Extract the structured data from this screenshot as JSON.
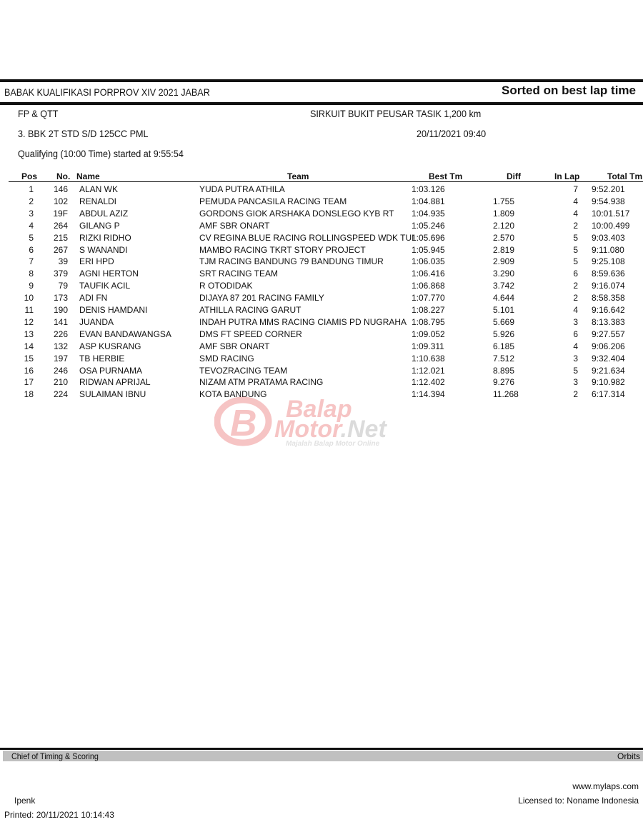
{
  "header": {
    "event_title": "BABAK KUALIFIKASI PORPROV XIV 2021 JABAR",
    "sort_label": "Sorted on best lap time",
    "session_type": "FP & QTT",
    "circuit": "SIRKUIT BUKIT PEUSAR TASIK 1,200 km",
    "class_name": "3. BBK 2T STD S/D 125CC PML",
    "datetime": "20/11/2021 09:40",
    "session_info": "Qualifying (10:00 Time) started at 9:55:54"
  },
  "table": {
    "columns": [
      "Pos",
      "No.",
      "Name",
      "Team",
      "Best Tm",
      "Diff",
      "In Lap",
      "Total Tm"
    ],
    "rows": [
      [
        "1",
        "146",
        "ALAN WK",
        "YUDA PUTRA ATHILA",
        "1:03.126",
        "",
        "7",
        "9:52.201"
      ],
      [
        "2",
        "102",
        "RENALDI",
        "PEMUDA PANCASILA RACING TEAM",
        "1:04.881",
        "1.755",
        "4",
        "9:54.938"
      ],
      [
        "3",
        "19F",
        "ABDUL AZIZ",
        "GORDONS GIOK ARSHAKA DONSLEGO KYB RT",
        "1:04.935",
        "1.809",
        "4",
        "10:01.517"
      ],
      [
        "4",
        "264",
        "GILANG P",
        "AMF SBR ONART",
        "1:05.246",
        "2.120",
        "2",
        "10:00.499"
      ],
      [
        "5",
        "215",
        "RIZKI RIDHO",
        "CV REGINA BLUE RACING ROLLINGSPEED WDK TUI",
        "1:05.696",
        "2.570",
        "5",
        "9:03.403"
      ],
      [
        "6",
        "267",
        "S WANANDI",
        "MAMBO RACING TKRT STORY PROJECT",
        "1:05.945",
        "2.819",
        "5",
        "9:11.080"
      ],
      [
        "7",
        "39",
        "ERI HPD",
        "TJM RACING BANDUNG 79 BANDUNG TIMUR",
        "1:06.035",
        "2.909",
        "5",
        "9:25.108"
      ],
      [
        "8",
        "379",
        "AGNI HERTON",
        "SRT RACING TEAM",
        "1:06.416",
        "3.290",
        "6",
        "8:59.636"
      ],
      [
        "9",
        "79",
        "TAUFIK ACIL",
        "R OTODIDAK",
        "1:06.868",
        "3.742",
        "2",
        "9:16.074"
      ],
      [
        "10",
        "173",
        "ADI FN",
        "DIJAYA 87 201 RACING FAMILY",
        "1:07.770",
        "4.644",
        "2",
        "8:58.358"
      ],
      [
        "11",
        "190",
        "DENIS HAMDANI",
        "ATHILLA RACING GARUT",
        "1:08.227",
        "5.101",
        "4",
        "9:16.642"
      ],
      [
        "12",
        "141",
        "JUANDA",
        "INDAH PUTRA MMS RACING CIAMIS PD NUGRAHA",
        "1:08.795",
        "5.669",
        "3",
        "8:13.383"
      ],
      [
        "13",
        "226",
        "EVAN BANDAWANGSA",
        "DMS FT SPEED CORNER",
        "1:09.052",
        "5.926",
        "6",
        "9:27.557"
      ],
      [
        "14",
        "132",
        "ASP KUSRANG",
        "AMF SBR ONART",
        "1:09.311",
        "6.185",
        "4",
        "9:06.206"
      ],
      [
        "15",
        "197",
        "TB HERBIE",
        "SMD RACING",
        "1:10.638",
        "7.512",
        "3",
        "9:32.404"
      ],
      [
        "16",
        "246",
        "OSA PURNAMA",
        "TEVOZRACING TEAM",
        "1:12.021",
        "8.895",
        "5",
        "9:21.634"
      ],
      [
        "17",
        "210",
        "RIDWAN APRIJAL",
        "NIZAM ATM PRATAMA RACING",
        "1:12.402",
        "9.276",
        "3",
        "9:10.982"
      ],
      [
        "18",
        "224",
        "SULAIMAN IBNU",
        "KOTA BANDUNG",
        "1:14.394",
        "11.268",
        "2",
        "6:17.314"
      ]
    ]
  },
  "watermark": {
    "line1": "Balap",
    "line2": "Motor.Net",
    "tagline": "Majalah Balap Motor Online",
    "color": "#e8585a"
  },
  "footer": {
    "left_bar": "Chief of Timing & Scoring",
    "right_bar": "Orbits",
    "website": "www.mylaps.com",
    "operator": "Ipenk",
    "licensed": "Licensed to:  Noname Indonesia",
    "printed": "Printed: 20/11/2021 10:14:43",
    "bar_color": "#c0c0c0"
  }
}
